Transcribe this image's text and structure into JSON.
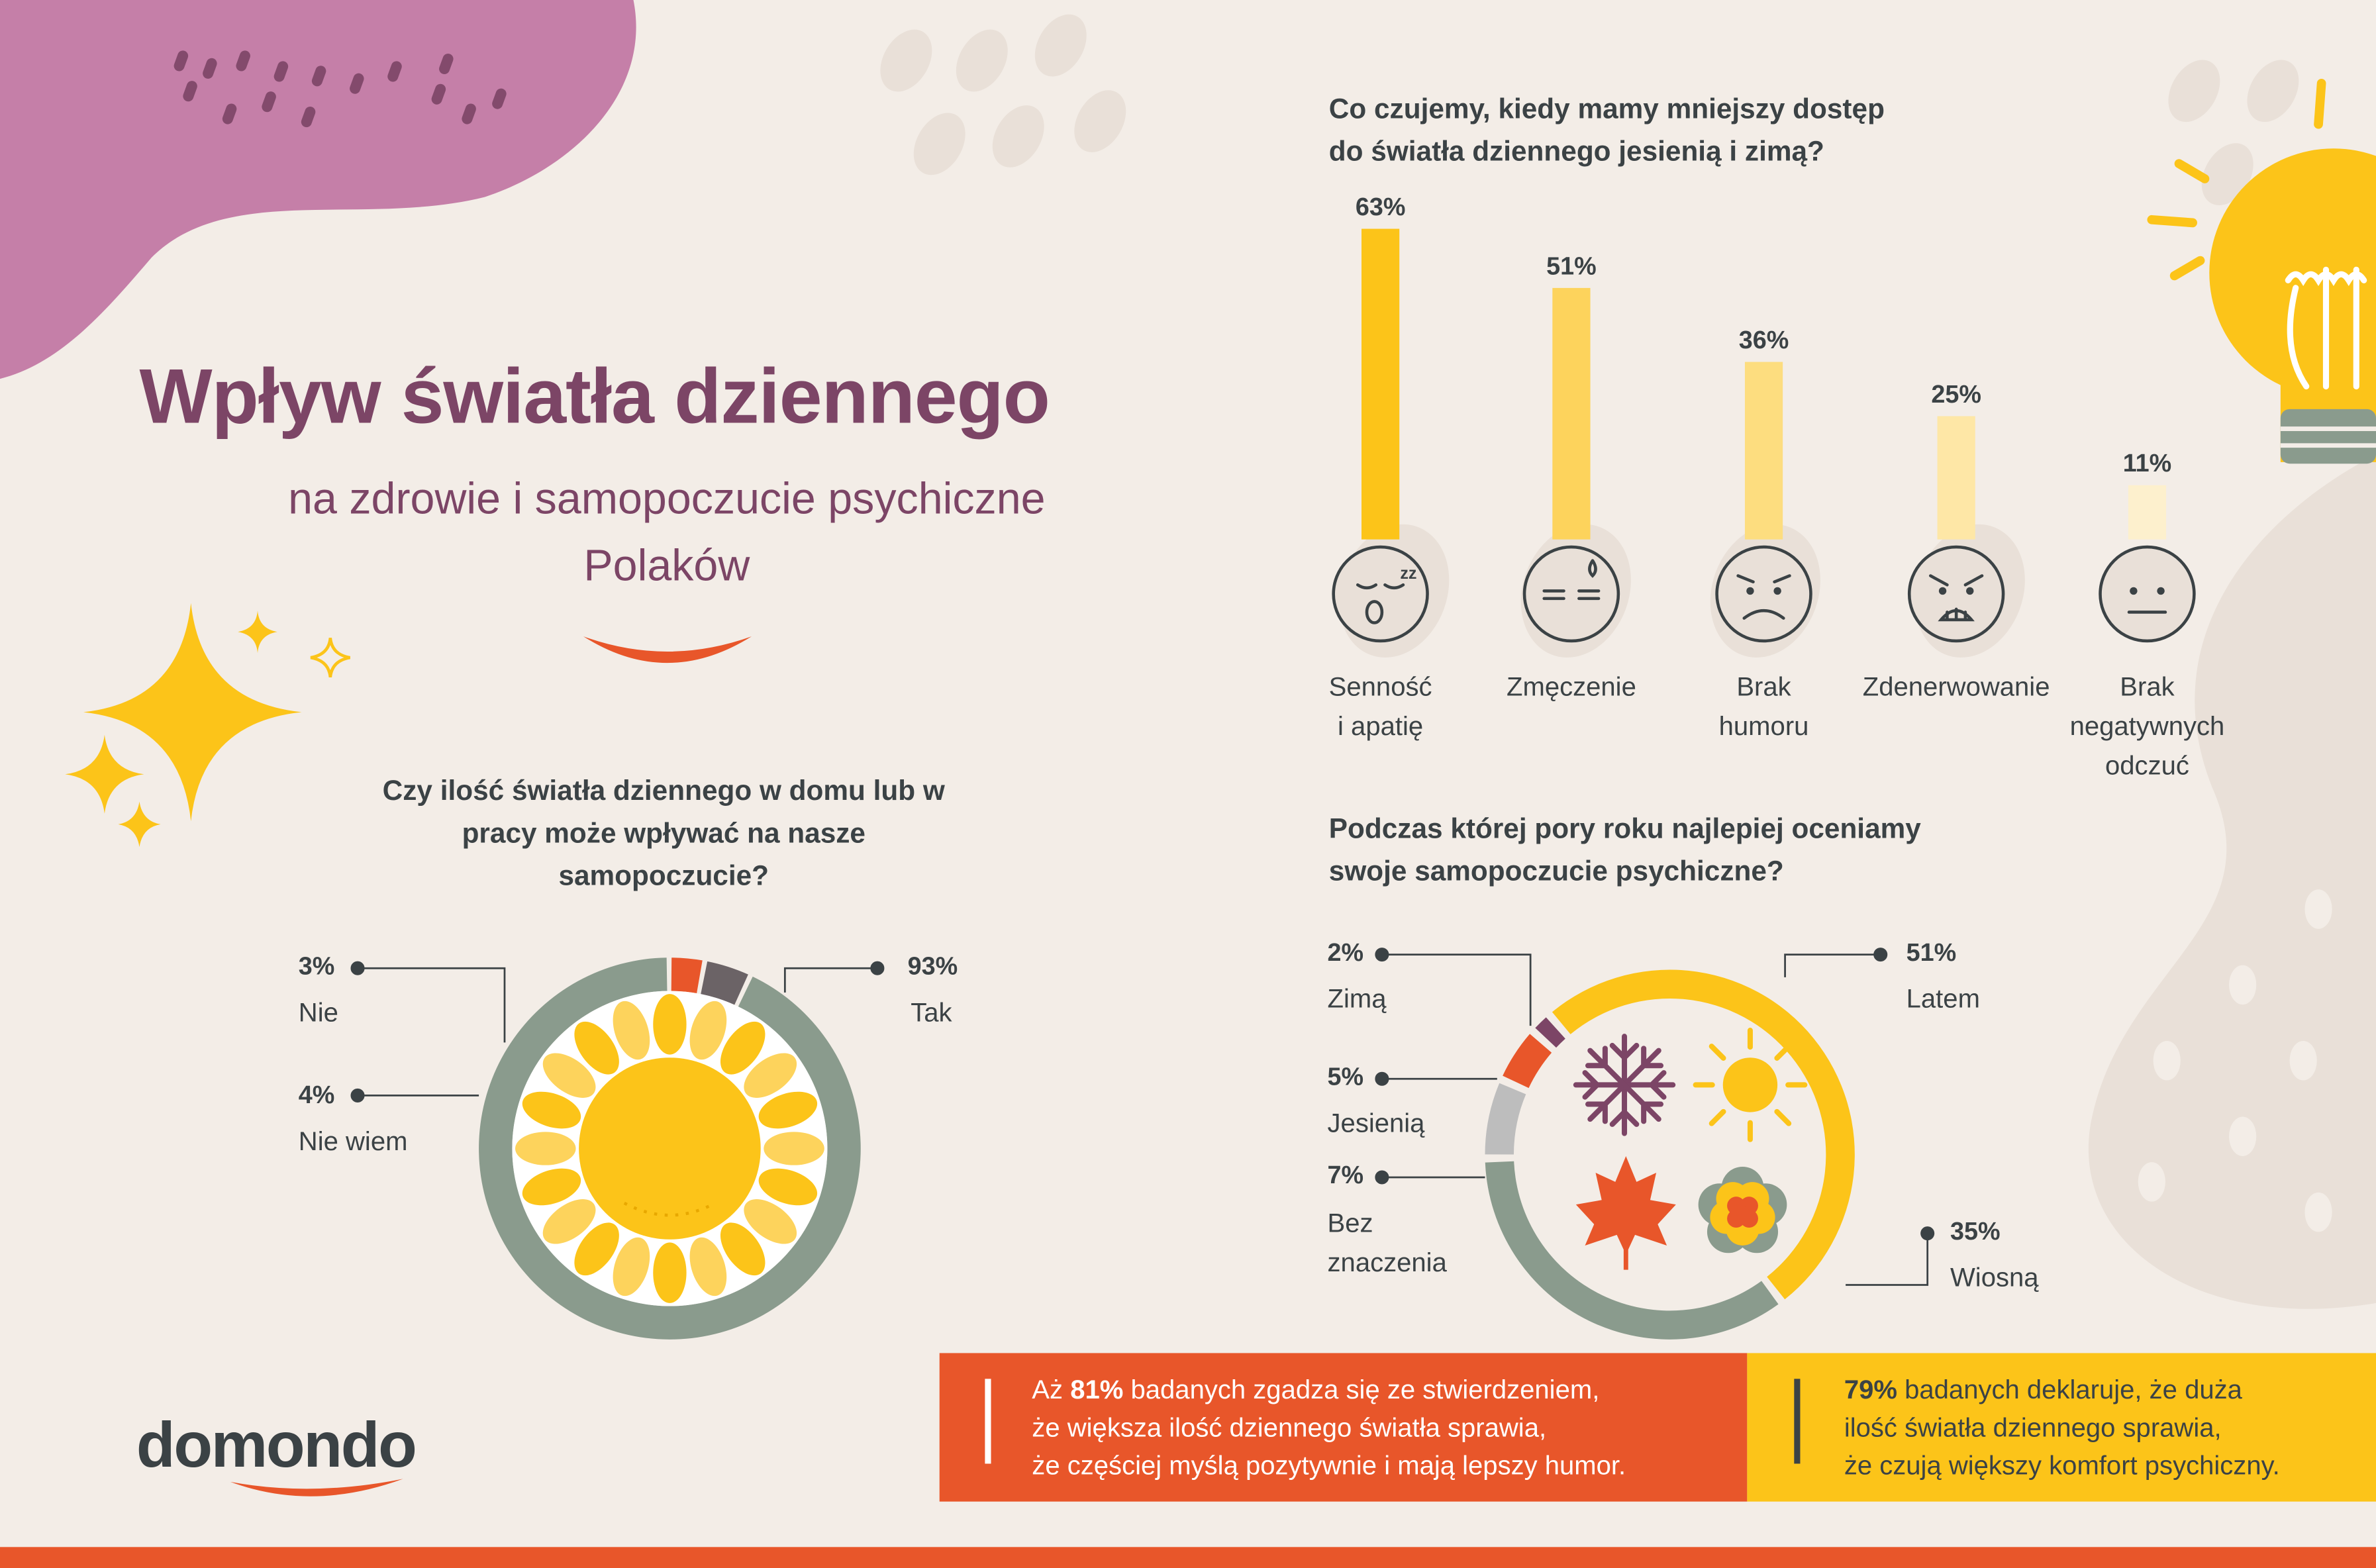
{
  "title": "Wpływ światła dziennego",
  "subtitle": "na zdrowie i samopoczucie psychiczne Polaków",
  "brand": {
    "name": "domondo",
    "colors": {
      "dark": "#3b4245",
      "accent": "#e8562a"
    }
  },
  "colors": {
    "purple": "#7c4566",
    "blob": "#c57fa8",
    "yellow": "#fcc419",
    "orange": "#e8562a",
    "sage": "#8a9b8d",
    "grey": "#bdbdbd",
    "darkgrey": "#6b6366",
    "bg": "#f3ede7"
  },
  "question1": "Czy ilość światła dziennego w domu lub w pracy może wpływać na nasze samopoczucie?",
  "question2_lines": [
    "Co czujemy, kiedy mamy mniejszy dostęp",
    "do światła dziennego jesienią i zimą?"
  ],
  "question3_lines": [
    "Podczas której pory roku najlepiej oceniamy",
    "swoje samopoczucie psychiczne?"
  ],
  "chart_data": [
    {
      "type": "pie",
      "slices": [
        {
          "label": "Tak",
          "value": 93,
          "display": "93%",
          "color": "#8a9b8d"
        },
        {
          "label": "Nie",
          "value": 3,
          "display": "3%",
          "color": "#e8562a"
        },
        {
          "label": "Nie wiem",
          "value": 4,
          "display": "4%",
          "color": "#6b6366"
        }
      ]
    },
    {
      "type": "bar",
      "categories": [
        "Senność i apatię",
        "Zmęczenie",
        "Brak humoru",
        "Zdenerwowanie",
        "Brak negatywnych odczuć"
      ],
      "category_lines": [
        [
          "Senność",
          "i apatię"
        ],
        [
          "Zmęczenie"
        ],
        [
          "Brak",
          "humoru"
        ],
        [
          "Zdenerwowanie"
        ],
        [
          "Brak",
          "negatywnych",
          "odczuć"
        ]
      ],
      "values": [
        63,
        51,
        36,
        25,
        11
      ],
      "labels": [
        "63%",
        "51%",
        "36%",
        "25%",
        "11%"
      ],
      "colors": [
        "#fcc419",
        "#fdd35c",
        "#fddd7f",
        "#fee7a6",
        "#fdf0cd"
      ],
      "icons": [
        "sleepy-face-icon",
        "tired-face-icon",
        "sad-face-icon",
        "angry-face-icon",
        "neutral-face-icon"
      ]
    },
    {
      "type": "pie",
      "slices": [
        {
          "label": "Latem",
          "value": 51,
          "display": "51%",
          "color": "#fcc419"
        },
        {
          "label": "Wiosną",
          "value": 35,
          "display": "35%",
          "color": "#8a9b8d"
        },
        {
          "label": "Bez znaczenia",
          "value": 7,
          "display": "7%",
          "color": "#bdbdbd"
        },
        {
          "label": "Jesienią",
          "value": 5,
          "display": "5%",
          "color": "#e8562a"
        },
        {
          "label": "Zimą",
          "value": 2,
          "display": "2%",
          "color": "#7c4566"
        }
      ],
      "icons": [
        "snowflake-icon",
        "sun-icon",
        "maple-leaf-icon",
        "flower-icon"
      ]
    }
  ],
  "pie1_labels": {
    "yes_pct": "93%",
    "yes": "Tak",
    "no_pct": "3%",
    "no": "Nie",
    "dk_pct": "4%",
    "dk": "Nie wiem"
  },
  "pie2_labels": {
    "winter_pct": "2%",
    "winter": "Zimą",
    "autumn_pct": "5%",
    "autumn": "Jesienią",
    "none_pct": "7%",
    "none_l1": "Bez",
    "none_l2": "znaczenia",
    "summer_pct": "51%",
    "summer": "Latem",
    "spring_pct": "35%",
    "spring": "Wiosną"
  },
  "banner_left": {
    "l1_pre": "Aż ",
    "l1_bold": "81%",
    "l1_post": " badanych zgadza się ze stwierdzeniem,",
    "l2": "że większa ilość dziennego światła sprawia,",
    "l3": "że częściej myślą pozytywnie i mają lepszy humor."
  },
  "banner_right": {
    "l1_bold": "79%",
    "l1_post": " badanych deklaruje, że duża",
    "l2": "ilość światła dziennego sprawia,",
    "l3": "że czują większy komfort psychiczny."
  }
}
